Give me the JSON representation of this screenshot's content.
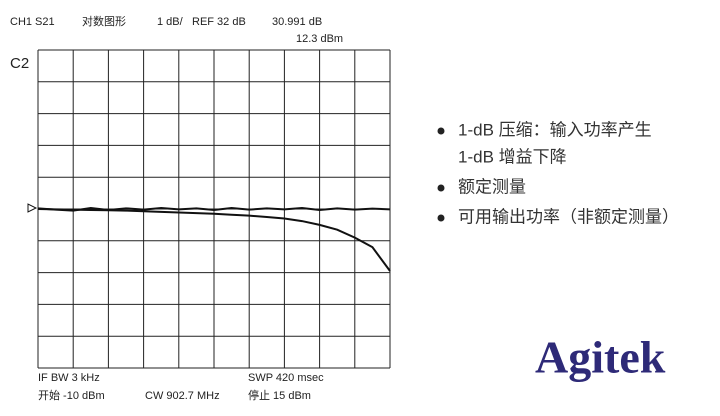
{
  "header": {
    "channel": "CH1 S21",
    "format": "对数图形",
    "scale": "1 dB/",
    "reference": "REF 32 dB",
    "marker_value": "30.991 dB",
    "marker_stimulus": "12.3 dBm",
    "trace_label": "C2"
  },
  "footer": {
    "if_bw": "IF BW 3 kHz",
    "sweep": "SWP 420 msec",
    "start": "开始 -10 dBm",
    "cw": "CW 902.7 MHz",
    "stop": "停止 15 dBm"
  },
  "chart_data": {
    "type": "line",
    "x": [
      -10,
      -8.75,
      -7.5,
      -6.25,
      -5,
      -3.75,
      -2.5,
      -1.25,
      0,
      1.25,
      2.5,
      3.75,
      5,
      6.25,
      7.5,
      8.75,
      10,
      11.25,
      12.5,
      13.75,
      15
    ],
    "series": [
      {
        "color": "#111111",
        "values": [
          32.02,
          31.98,
          31.95,
          32.03,
          31.97,
          32.02,
          31.98,
          32.03,
          31.99,
          32.02,
          31.97,
          32.03,
          31.98,
          32.02,
          31.99,
          32.03,
          31.97,
          32.02,
          31.98,
          32.01,
          31.99
        ]
      },
      {
        "color": "#111111",
        "values": [
          32.0,
          31.99,
          31.98,
          31.97,
          31.96,
          31.95,
          31.93,
          31.91,
          31.89,
          31.87,
          31.85,
          31.82,
          31.79,
          31.75,
          31.7,
          31.62,
          31.5,
          31.35,
          31.1,
          30.8,
          30.05
        ]
      }
    ],
    "xlim": [
      -10,
      15
    ],
    "ylim": [
      27,
      37
    ]
  },
  "bullets": [
    [
      "1-dB 压缩：输入功率产生",
      "1-dB 增益下降"
    ],
    [
      "额定测量"
    ],
    [
      "可用输出功率（非额定测量）"
    ]
  ],
  "logo": "Agitek"
}
